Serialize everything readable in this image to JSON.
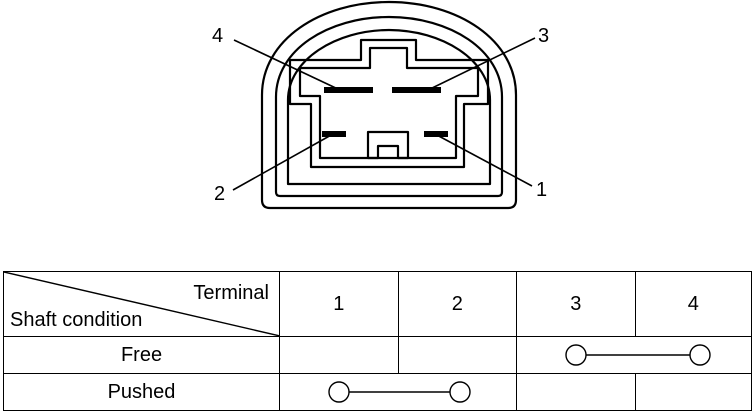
{
  "connector": {
    "pins": [
      {
        "id": "4",
        "label": "4"
      },
      {
        "id": "3",
        "label": "3"
      },
      {
        "id": "2",
        "label": "2"
      },
      {
        "id": "1",
        "label": "1"
      }
    ]
  },
  "table": {
    "header": {
      "terminal_label": "Terminal",
      "condition_label": "Shaft condition",
      "terminals": [
        "1",
        "2",
        "3",
        "4"
      ]
    },
    "rows": [
      {
        "condition": "Free",
        "connected": [
          "3",
          "4"
        ]
      },
      {
        "condition": "Pushed",
        "connected": [
          "1",
          "2"
        ]
      }
    ]
  }
}
